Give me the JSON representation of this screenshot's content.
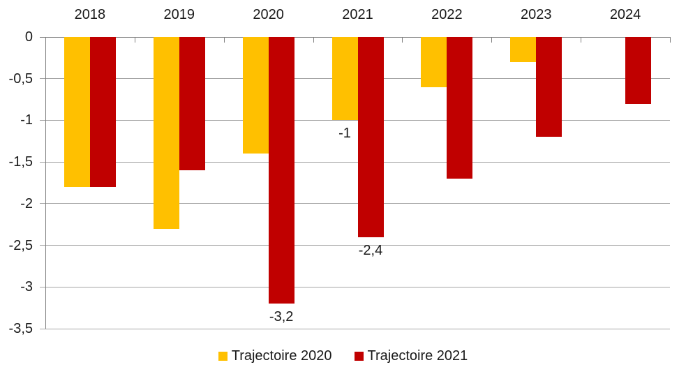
{
  "chart_data": {
    "type": "bar",
    "title": "",
    "orientation": "vertical-negative",
    "categories": [
      "2018",
      "2019",
      "2020",
      "2021",
      "2022",
      "2023",
      "2024"
    ],
    "series": [
      {
        "name": "Trajectoire 2020",
        "color": "#FFC000",
        "values": [
          -1.8,
          -2.3,
          -1.4,
          -1.0,
          -0.6,
          -0.3,
          null
        ]
      },
      {
        "name": "Trajectoire 2021",
        "color": "#C00000",
        "values": [
          -1.8,
          -1.6,
          -3.2,
          -2.4,
          -1.7,
          -1.2,
          -0.8
        ]
      }
    ],
    "data_labels": [
      {
        "series": "Trajectoire 2021",
        "category": "2020",
        "text": "-3,2"
      },
      {
        "series": "Trajectoire 2020",
        "category": "2021",
        "text": "-1"
      },
      {
        "series": "Trajectoire 2021",
        "category": "2021",
        "text": "-2,4"
      }
    ],
    "y_axis": {
      "min": -3.5,
      "max": 0,
      "step": 0.5,
      "tick_labels": [
        "0",
        "-0,5",
        "-1",
        "-1,5",
        "-2",
        "-2,5",
        "-3",
        "-3,5"
      ]
    },
    "x_axis": {
      "labels_position": "top"
    },
    "grid": true,
    "legend_position": "bottom",
    "colors": {
      "gridline": "#a6a6a6",
      "axis": "#808080",
      "text": "#1a1a1a",
      "background": "#ffffff"
    }
  }
}
